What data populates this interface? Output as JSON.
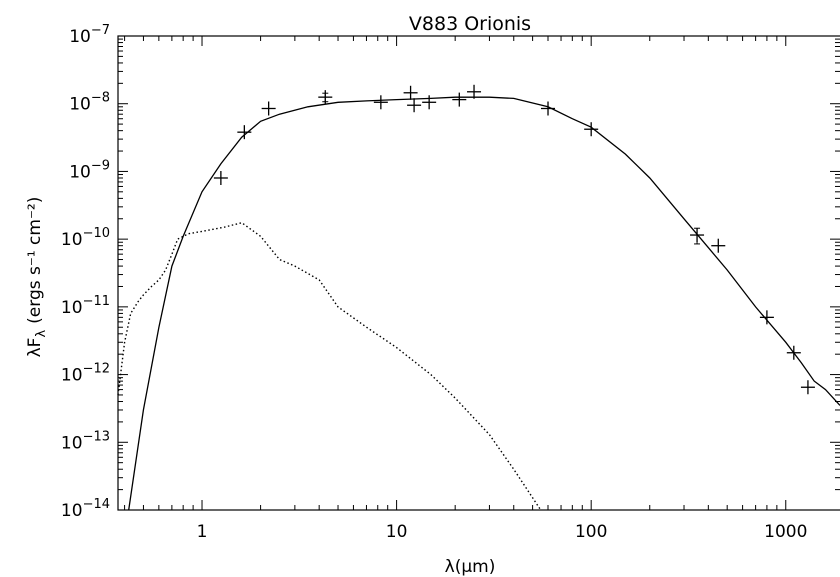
{
  "chart_data": {
    "type": "scatter",
    "title": "V883 Orionis",
    "xlabel": "λ(μm)",
    "ylabel": "λF",
    "ylabel_sub": "λ",
    "ylabel_units": "(ergs s⁻¹ cm⁻²)",
    "x_scale": "log",
    "y_scale": "log",
    "xlim": [
      0.37,
      1900
    ],
    "ylim": [
      1e-14,
      1e-07
    ],
    "x_ticks": [
      {
        "value": 1,
        "label": "1"
      },
      {
        "value": 10,
        "label": "10"
      },
      {
        "value": 100,
        "label": "100"
      },
      {
        "value": 1000,
        "label": "1000"
      }
    ],
    "y_ticks": [
      {
        "value": 1e-14,
        "base": "10",
        "exp": "−14"
      },
      {
        "value": 1e-13,
        "base": "10",
        "exp": "−13"
      },
      {
        "value": 1e-12,
        "base": "10",
        "exp": "−12"
      },
      {
        "value": 1e-11,
        "base": "10",
        "exp": "−11"
      },
      {
        "value": 1e-10,
        "base": "10",
        "exp": "−10"
      },
      {
        "value": 1e-09,
        "base": "10",
        "exp": "−9"
      },
      {
        "value": 1e-08,
        "base": "10",
        "exp": "−8"
      },
      {
        "value": 1e-07,
        "base": "10",
        "exp": "−7"
      }
    ],
    "grid": false,
    "series": [
      {
        "style": "solid",
        "kind": "line",
        "points": [
          [
            0.42,
            1e-14
          ],
          [
            0.5,
            3e-13
          ],
          [
            0.6,
            5e-12
          ],
          [
            0.7,
            4e-11
          ],
          [
            0.8,
            1.1e-10
          ],
          [
            1.0,
            5e-10
          ],
          [
            1.25,
            1.3e-09
          ],
          [
            1.6,
            3.2e-09
          ],
          [
            2.0,
            5.5e-09
          ],
          [
            2.5,
            7e-09
          ],
          [
            3.5,
            9e-09
          ],
          [
            5,
            1.05e-08
          ],
          [
            7,
            1.1e-08
          ],
          [
            10,
            1.15e-08
          ],
          [
            15,
            1.2e-08
          ],
          [
            20,
            1.25e-08
          ],
          [
            30,
            1.25e-08
          ],
          [
            40,
            1.2e-08
          ],
          [
            60,
            9e-09
          ],
          [
            80,
            6e-09
          ],
          [
            100,
            4.5e-09
          ],
          [
            150,
            1.8e-09
          ],
          [
            200,
            8e-10
          ],
          [
            300,
            2e-10
          ],
          [
            400,
            7.5e-11
          ],
          [
            500,
            3.5e-11
          ],
          [
            700,
            1e-11
          ],
          [
            1000,
            3e-12
          ],
          [
            1200,
            1.5e-12
          ],
          [
            1400,
            8e-13
          ],
          [
            1600,
            6e-13
          ],
          [
            1900,
            3.5e-13
          ]
        ]
      },
      {
        "style": "dotted",
        "kind": "line",
        "points": [
          [
            0.37,
            5e-13
          ],
          [
            0.4,
            3e-12
          ],
          [
            0.43,
            8e-12
          ],
          [
            0.47,
            1.2e-11
          ],
          [
            0.5,
            1.5e-11
          ],
          [
            0.55,
            2e-11
          ],
          [
            0.6,
            2.5e-11
          ],
          [
            0.65,
            3.5e-11
          ],
          [
            0.7,
            6e-11
          ],
          [
            0.75,
            1e-10
          ],
          [
            0.85,
            1.2e-10
          ],
          [
            1.0,
            1.3e-10
          ],
          [
            1.3,
            1.5e-10
          ],
          [
            1.6,
            1.75e-10
          ],
          [
            2.0,
            1.1e-10
          ],
          [
            2.5,
            5e-11
          ],
          [
            3,
            4e-11
          ],
          [
            4,
            2.5e-11
          ],
          [
            5,
            1e-11
          ],
          [
            7,
            5e-12
          ],
          [
            10,
            2.5e-12
          ],
          [
            15,
            1e-12
          ],
          [
            20,
            4.5e-13
          ],
          [
            30,
            1.3e-13
          ],
          [
            40,
            4e-14
          ],
          [
            55,
            1e-14
          ]
        ]
      },
      {
        "style": "plus",
        "kind": "scatter",
        "points": [
          {
            "x": 1.25,
            "y": 8e-10
          },
          {
            "x": 1.65,
            "y": 3.8e-09
          },
          {
            "x": 2.2,
            "y": 8.5e-09
          },
          {
            "x": 4.3,
            "y": 1.25e-08,
            "err": 1.8e-09
          },
          {
            "x": 8.3,
            "y": 1.05e-08
          },
          {
            "x": 11.8,
            "y": 1.45e-08
          },
          {
            "x": 12.3,
            "y": 9.5e-09
          },
          {
            "x": 14.7,
            "y": 1.05e-08
          },
          {
            "x": 21,
            "y": 1.15e-08
          },
          {
            "x": 25,
            "y": 1.5e-08
          },
          {
            "x": 60,
            "y": 8.5e-09
          },
          {
            "x": 100,
            "y": 4.2e-09
          },
          {
            "x": 350,
            "y": 1.15e-10,
            "err": 3e-11
          },
          {
            "x": 450,
            "y": 8e-11
          },
          {
            "x": 800,
            "y": 7e-12
          },
          {
            "x": 1100,
            "y": 2.1e-12
          },
          {
            "x": 1300,
            "y": 6.5e-13
          }
        ]
      }
    ]
  }
}
